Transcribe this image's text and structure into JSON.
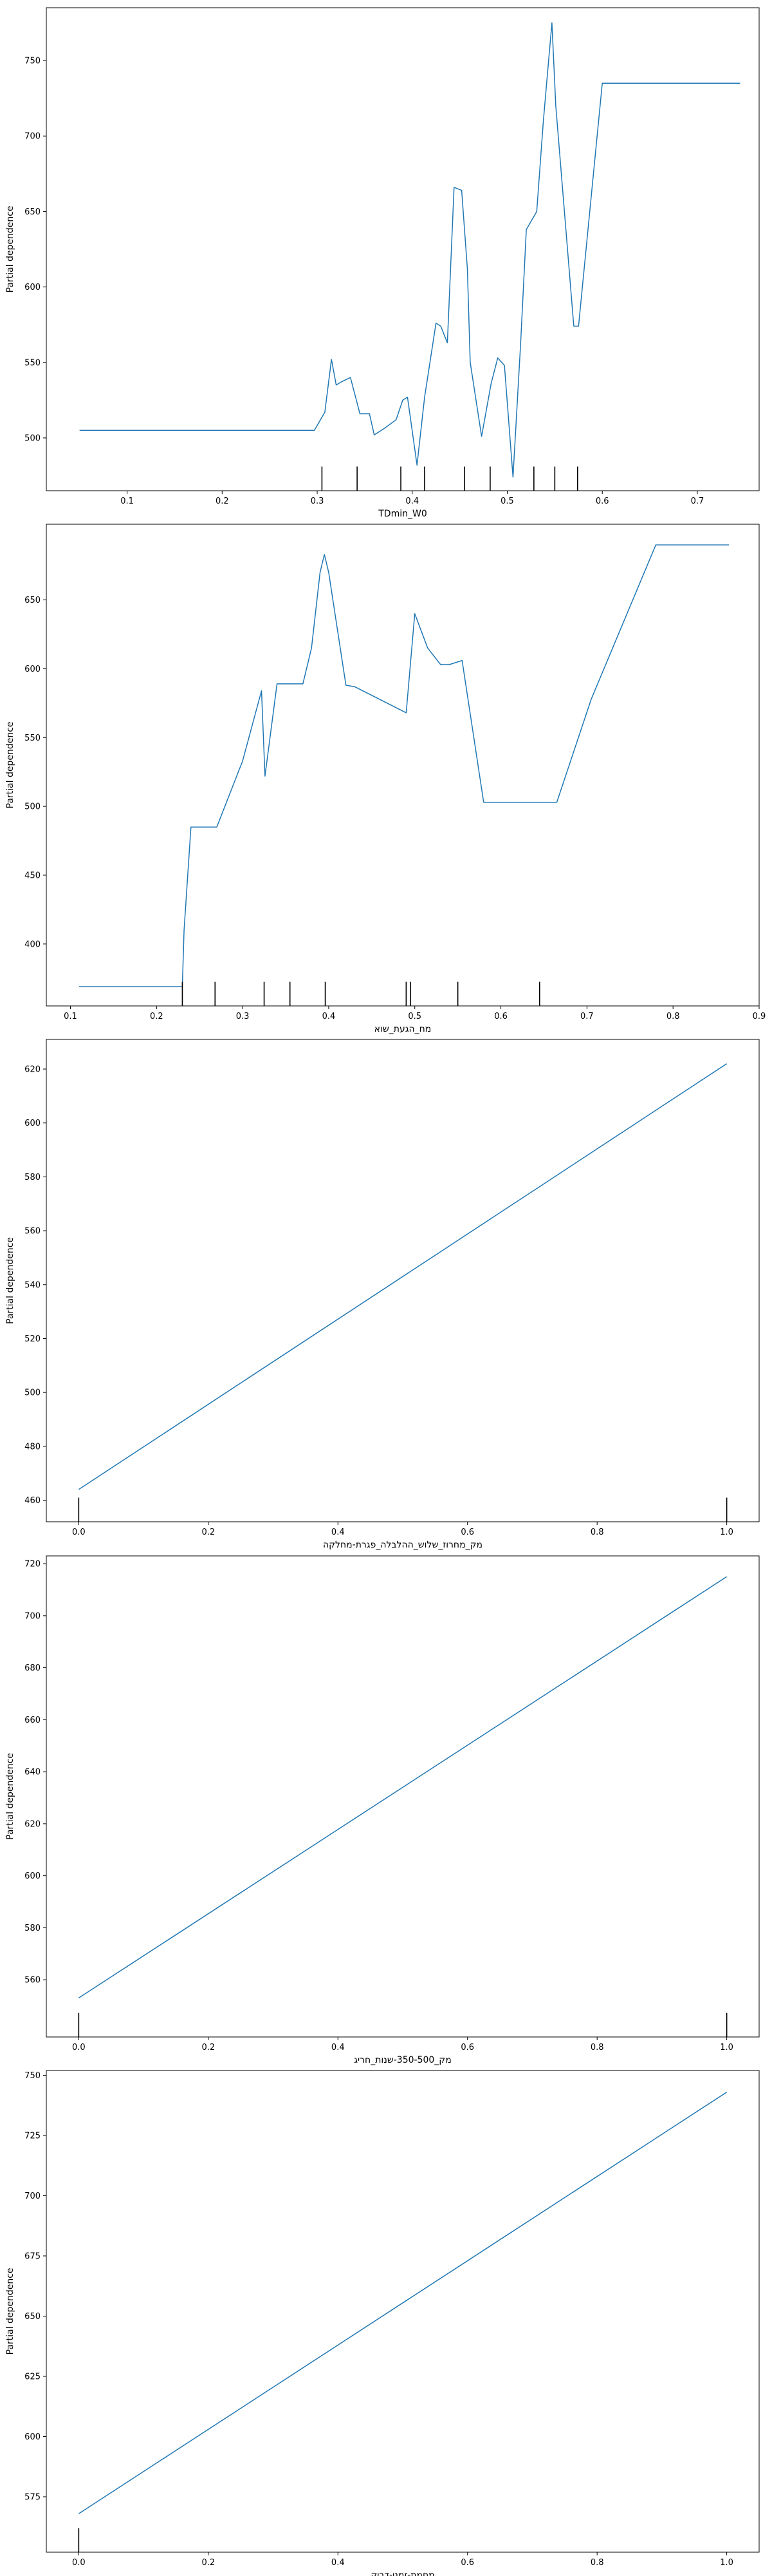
{
  "figure": {
    "ylabel": "Partial dependence",
    "line_color": "#1f77b4",
    "rug_color": "#000000"
  },
  "chart_data": [
    {
      "type": "line",
      "xlabel": "TDmin_W0",
      "ylabel": "Partial dependence",
      "xlim": [
        0.015,
        0.765
      ],
      "ylim": [
        465,
        785
      ],
      "xticks": [
        0.1,
        0.2,
        0.3,
        0.4,
        0.5,
        0.6,
        0.7
      ],
      "yticks": [
        500,
        550,
        600,
        650,
        700,
        750
      ],
      "x": [
        0.05,
        0.15,
        0.25,
        0.297,
        0.308,
        0.315,
        0.32,
        0.325,
        0.335,
        0.345,
        0.355,
        0.36,
        0.37,
        0.383,
        0.39,
        0.395,
        0.405,
        0.413,
        0.425,
        0.43,
        0.437,
        0.444,
        0.452,
        0.458,
        0.461,
        0.473,
        0.483,
        0.49,
        0.497,
        0.506,
        0.514,
        0.52,
        0.531,
        0.538,
        0.547,
        0.551,
        0.57,
        0.575,
        0.6,
        0.65,
        0.7,
        0.745
      ],
      "y": [
        505,
        505,
        505,
        505,
        517,
        552,
        535,
        537,
        540,
        516,
        516,
        502,
        506,
        512,
        525,
        527,
        482,
        527,
        576,
        574,
        563,
        666,
        664,
        612,
        550,
        501,
        536,
        553,
        548,
        474,
        562,
        638,
        650,
        710,
        775,
        720,
        574,
        574,
        735,
        735,
        735,
        735
      ],
      "rug": [
        0.305,
        0.342,
        0.388,
        0.413,
        0.455,
        0.482,
        0.528,
        0.55,
        0.574
      ]
    },
    {
      "type": "line",
      "xlabel": "מח_הגעת_שוא",
      "ylabel": "Partial dependence",
      "xlim": [
        0.072,
        0.9
      ],
      "ylim": [
        355,
        705
      ],
      "xticks": [
        0.1,
        0.2,
        0.3,
        0.4,
        0.5,
        0.6,
        0.7,
        0.8,
        0.9
      ],
      "yticks": [
        400,
        450,
        500,
        550,
        600,
        650
      ],
      "x": [
        0.11,
        0.17,
        0.23,
        0.232,
        0.24,
        0.25,
        0.27,
        0.3,
        0.322,
        0.326,
        0.34,
        0.37,
        0.38,
        0.39,
        0.395,
        0.4,
        0.42,
        0.43,
        0.49,
        0.5,
        0.515,
        0.53,
        0.54,
        0.555,
        0.58,
        0.62,
        0.665,
        0.705,
        0.78,
        0.865
      ],
      "y": [
        369,
        369,
        369,
        410,
        485,
        485,
        485,
        533,
        584,
        522,
        589,
        589,
        615,
        670,
        683,
        670,
        588,
        587,
        568,
        640,
        615,
        603,
        603,
        606,
        503,
        503,
        503,
        578,
        690,
        690
      ],
      "rug": [
        0.23,
        0.268,
        0.325,
        0.355,
        0.396,
        0.49,
        0.495,
        0.55,
        0.645
      ]
    },
    {
      "type": "line",
      "xlabel": "מק_מחרוז_שלוש_ההלבלה_פגרת-מחלקה",
      "ylabel": "Partial dependence",
      "xlim": [
        -0.05,
        1.05
      ],
      "ylim": [
        452,
        631
      ],
      "xticks": [
        0.0,
        0.2,
        0.4,
        0.6,
        0.8,
        1.0
      ],
      "yticks": [
        460,
        480,
        500,
        520,
        540,
        560,
        580,
        600,
        620
      ],
      "x": [
        0.0,
        1.0
      ],
      "y": [
        464,
        622
      ],
      "rug": [
        0.0,
        1.0
      ]
    },
    {
      "type": "line",
      "xlabel": "מק_350-500-שנות_חריג",
      "ylabel": "Partial dependence",
      "xlim": [
        -0.05,
        1.05
      ],
      "ylim": [
        538,
        723
      ],
      "xticks": [
        0.0,
        0.2,
        0.4,
        0.6,
        0.8,
        1.0
      ],
      "yticks": [
        560,
        580,
        600,
        620,
        640,
        660,
        680,
        700,
        720
      ],
      "x": [
        0.0,
        1.0
      ],
      "y": [
        553,
        715
      ],
      "rug": [
        0.0,
        1.0
      ]
    },
    {
      "type": "line",
      "xlabel": "מחמת-זמני-דביק",
      "ylabel": "Partial dependence",
      "xlim": [
        -0.05,
        1.05
      ],
      "ylim": [
        552,
        752
      ],
      "xticks": [
        0.0,
        0.2,
        0.4,
        0.6,
        0.8,
        1.0
      ],
      "yticks": [
        575,
        600,
        625,
        650,
        675,
        700,
        725,
        750
      ],
      "x": [
        0.0,
        1.0
      ],
      "y": [
        568,
        743
      ],
      "rug": [
        0.0
      ]
    }
  ]
}
